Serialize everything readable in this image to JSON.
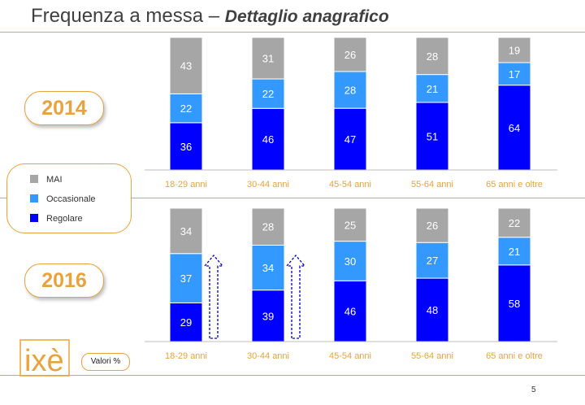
{
  "title": {
    "main": "Frequenza a messa – ",
    "italic": "Dettaglio anagrafico"
  },
  "years": [
    "2014",
    "2016"
  ],
  "legend": [
    {
      "label": "MAI",
      "color": "#a6a6a6"
    },
    {
      "label": "Occasionale",
      "color": "#3399ff"
    },
    {
      "label": "Regolare",
      "color": "#0000ff"
    }
  ],
  "valori_label": "Valori %",
  "page_number": "5",
  "logo_text": "ixè",
  "colors": {
    "accent": "#e8a33c",
    "mai": "#a6a6a6",
    "occasionale": "#3399ff",
    "regolare": "#0000ff",
    "category_label": "#e8a33c"
  },
  "chart_data": [
    {
      "type": "bar",
      "stacked": true,
      "year": "2014",
      "categories": [
        "18-29 anni",
        "30-44 anni",
        "45-54 anni",
        "55-64 anni",
        "65 anni e oltre"
      ],
      "series": [
        {
          "name": "Regolare",
          "values": [
            36,
            46,
            47,
            51,
            64
          ]
        },
        {
          "name": "Occasionale",
          "values": [
            22,
            22,
            28,
            21,
            17
          ]
        },
        {
          "name": "MAI",
          "values": [
            43,
            31,
            26,
            28,
            19
          ]
        }
      ]
    },
    {
      "type": "bar",
      "stacked": true,
      "year": "2016",
      "categories": [
        "18-29 anni",
        "30-44 anni",
        "45-54 anni",
        "55-64 anni",
        "65 anni e oltre"
      ],
      "series": [
        {
          "name": "Regolare",
          "values": [
            29,
            39,
            46,
            48,
            58
          ]
        },
        {
          "name": "Occasionale",
          "values": [
            37,
            34,
            30,
            27,
            21
          ]
        },
        {
          "name": "MAI",
          "values": [
            34,
            28,
            25,
            26,
            22
          ]
        }
      ],
      "highlight_arrows": [
        "18-29 anni",
        "30-44 anni"
      ]
    }
  ]
}
